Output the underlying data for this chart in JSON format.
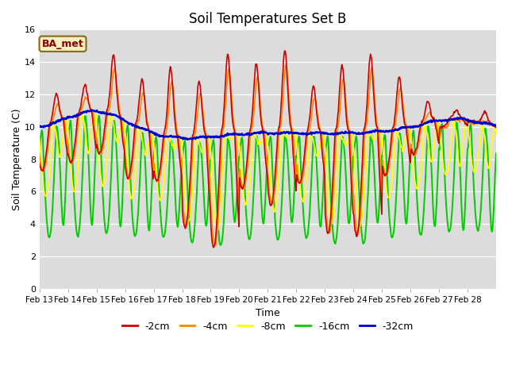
{
  "title": "Soil Temperatures Set B",
  "xlabel": "Time",
  "ylabel": "Soil Temperature (C)",
  "annotation": "BA_met",
  "ylim": [
    0,
    16
  ],
  "yticks": [
    0,
    2,
    4,
    6,
    8,
    10,
    12,
    14,
    16
  ],
  "xtick_labels": [
    "Feb 13",
    "Feb 14",
    "Feb 15",
    "Feb 16",
    "Feb 17",
    "Feb 18",
    "Feb 19",
    "Feb 20",
    "Feb 21",
    "Feb 22",
    "Feb 23",
    "Feb 24",
    "Feb 25",
    "Feb 26",
    "Feb 27",
    "Feb 28"
  ],
  "series_colors": [
    "#cc0000",
    "#ff8800",
    "#ffff00",
    "#00cc00",
    "#0000cc"
  ],
  "series_labels": [
    "-2cm",
    "-4cm",
    "-8cm",
    "-16cm",
    "-32cm"
  ],
  "bg_color": "#dcdcdc",
  "fig_color": "#ffffff",
  "n_days": 16,
  "pts_per_day": 48
}
